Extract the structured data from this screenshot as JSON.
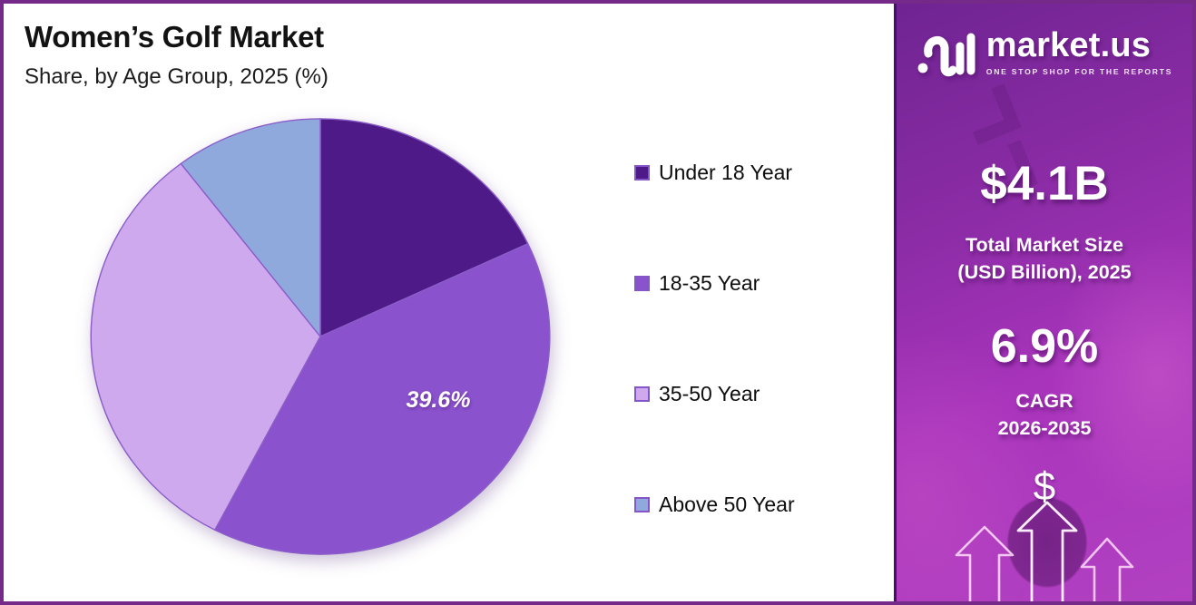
{
  "chart": {
    "title": "Women’s Golf Market",
    "subtitle": "Share, by Age Group, 2025 (%)"
  },
  "chart_data": {
    "type": "pie",
    "title": "Women’s Golf Market Share, by Age Group, 2025 (%)",
    "categories": [
      "Under 18 Year",
      "18-35 Year",
      "35-50 Year",
      "Above 50 Year"
    ],
    "values": [
      18.0,
      39.6,
      32.0,
      10.4
    ],
    "unit": "%",
    "colors": [
      "#4e1a87",
      "#8b52ce",
      "#cfa9ee",
      "#90a9dd"
    ],
    "slice_stroke_color": "#8a5dc8",
    "start_angle_deg": 0,
    "direction": "clockwise",
    "legend_position": "right",
    "data_labels": [
      {
        "category": "18-35 Year",
        "text": "39.6%"
      }
    ]
  },
  "sidebar": {
    "logo": {
      "brand": "market.us",
      "tagline": "ONE STOP SHOP FOR THE REPORTS"
    },
    "market_size_value": "$4.1B",
    "market_size_label_line1": "Total Market Size",
    "market_size_label_line2": "(USD Billion), 2025",
    "cagr_value": "6.9%",
    "cagr_label_line1": "CAGR",
    "cagr_label_line2": "2026-2035",
    "dollar_symbol": "$",
    "accent_colors": {
      "gradient_top": "#6f2492",
      "gradient_bottom": "#b241c1",
      "border": "#752a8a"
    }
  }
}
